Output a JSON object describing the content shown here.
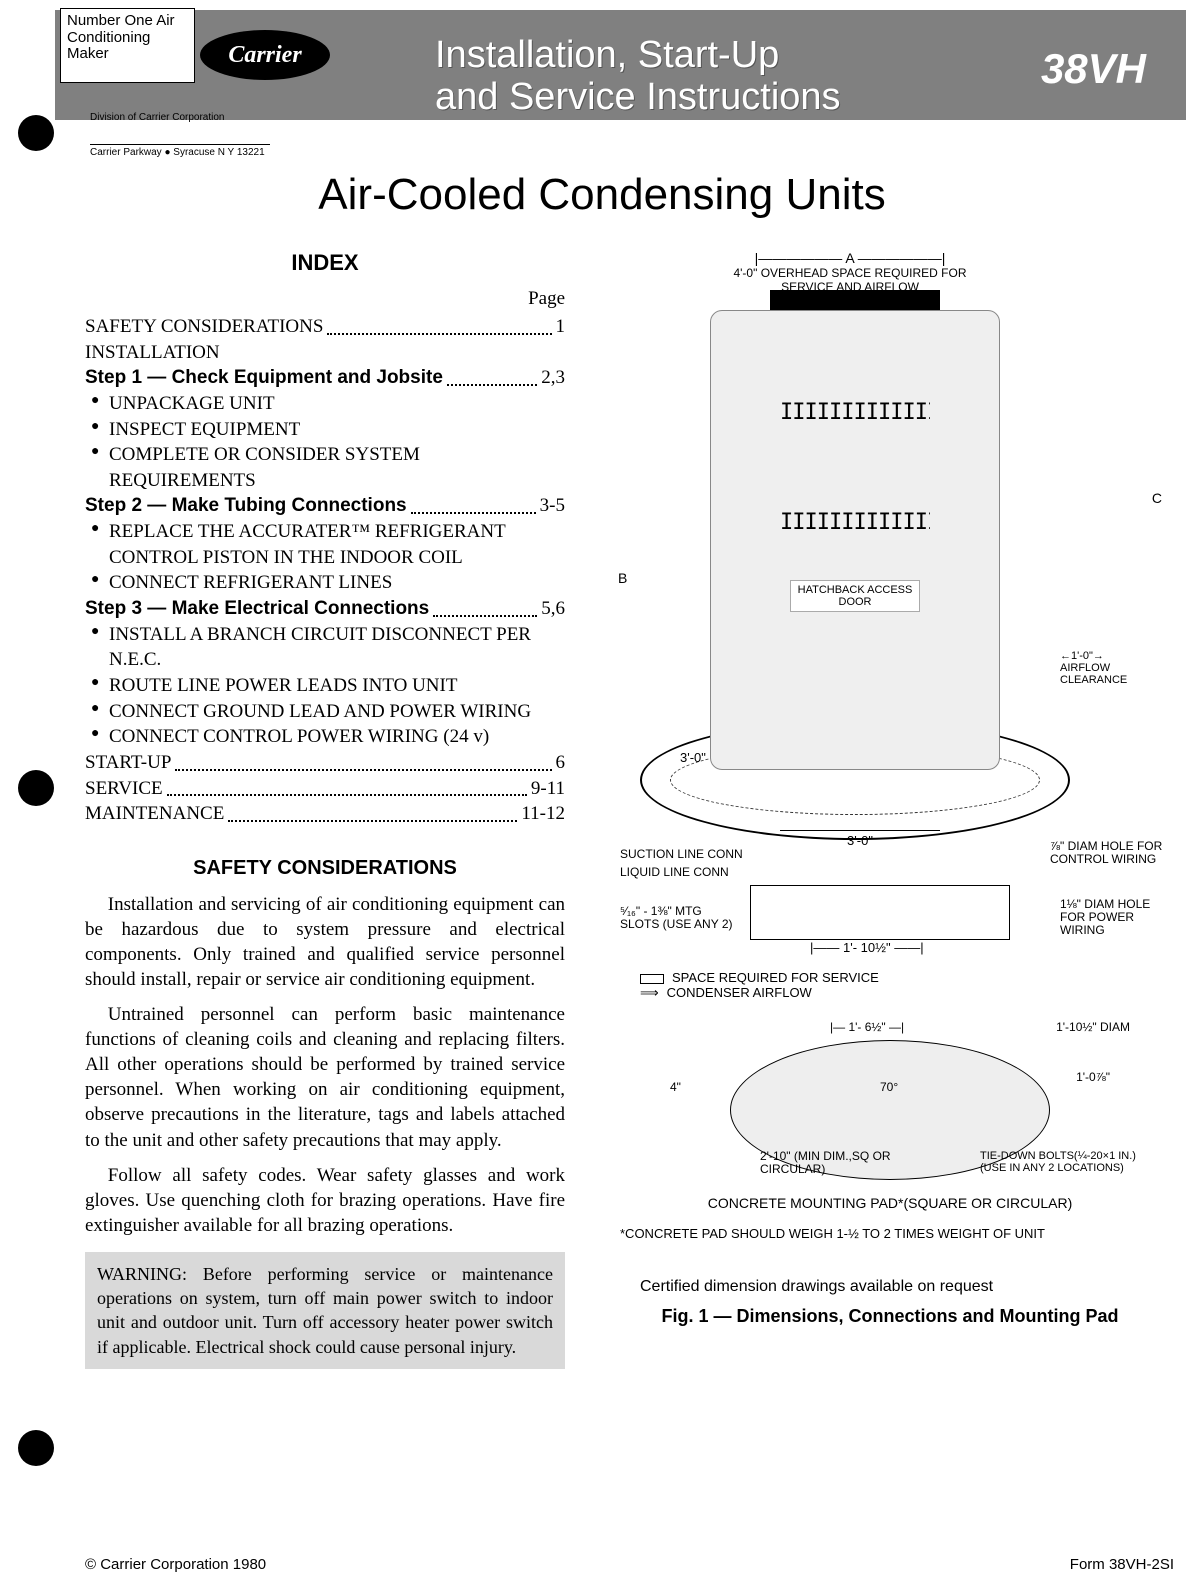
{
  "header": {
    "tagline": "Number One Air Conditioning Maker",
    "brand": "Carrier",
    "division": "Division of Carrier Corporation",
    "address": "Carrier Parkway ● Syracuse N Y 13221",
    "banner_title_line1": "Installation, Start-Up",
    "banner_title_line2": "and Service Instructions",
    "model": "38VH"
  },
  "main_title": "Air-Cooled Condensing Units",
  "index": {
    "title": "INDEX",
    "page_label": "Page",
    "rows": [
      {
        "label": "SAFETY CONSIDERATIONS",
        "page": "1"
      },
      {
        "label": "INSTALLATION",
        "page": ""
      },
      {
        "label_bold": "Step 1 — Check Equipment and Jobsite",
        "page": "2,3"
      }
    ],
    "step1_bullets": [
      "UNPACKAGE UNIT",
      "INSPECT EQUIPMENT",
      "COMPLETE OR CONSIDER SYSTEM REQUIREMENTS"
    ],
    "step2": {
      "label_bold": "Step 2 — Make Tubing Connections",
      "page": "3-5"
    },
    "step2_bullets": [
      "REPLACE THE ACCURATER™ REFRIGERANT CONTROL PISTON IN THE INDOOR COIL",
      "CONNECT REFRIGERANT LINES"
    ],
    "step3": {
      "label_bold": "Step 3 — Make Electrical Connections",
      "page": "5,6"
    },
    "step3_bullets": [
      "INSTALL A BRANCH CIRCUIT DISCONNECT PER N.E.C.",
      "ROUTE LINE POWER LEADS INTO UNIT",
      "CONNECT GROUND LEAD AND POWER WIRING",
      "CONNECT CONTROL POWER WIRING (24 v)"
    ],
    "tail": [
      {
        "label": "START-UP",
        "page": "6"
      },
      {
        "label": "SERVICE",
        "page": "9-11"
      },
      {
        "label": "MAINTENANCE",
        "page": "11-12"
      }
    ]
  },
  "safety": {
    "title": "SAFETY CONSIDERATIONS",
    "p1": "Installation and servicing of air conditioning equipment can be hazardous due to system pressure and electrical components. Only trained and qualified service personnel should install, repair or service air conditioning equipment.",
    "p2": "Untrained personnel can perform basic maintenance functions of cleaning coils and cleaning and replacing filters. All other operations should be performed by trained service personnel. When working on air conditioning equipment, observe precautions in the literature, tags and labels attached to the unit and other safety precautions that may apply.",
    "p3": "Follow all safety codes. Wear safety glasses and work gloves. Use quenching cloth for brazing operations. Have fire extinguisher available for all brazing operations.",
    "warning": "WARNING: Before performing service or maintenance operations on system, turn off main power switch to indoor unit and outdoor unit. Turn off accessory heater power switch if applicable. Electrical shock could cause personal injury."
  },
  "diagram": {
    "dim_a": "A",
    "overhead": "4'-0\" OVERHEAD SPACE REQUIRED FOR SERVICE AND AIRFLOW",
    "grille": "IIIIIIIIIIIIIIII IIIIIIIIIIIIIIII",
    "hatch": "HATCHBACK ACCESS DOOR",
    "dim_b": "B",
    "dim_c": "C",
    "dim_1_0": "1'-0\"",
    "airflow": "AIRFLOW CLEARANCE",
    "dim_3_0": "3'-0\"",
    "suction": "SUCTION LINE CONN",
    "liquid": "LIQUID LINE CONN",
    "diam_hole": "⅞\" DIAM HOLE FOR CONTROL WIRING",
    "mtg": "⁵⁄₁₆\" - 1⅜\" MTG SLOTS (USE ANY 2)",
    "pwr_hole": "1⅛\" DIAM HOLE FOR POWER WIRING",
    "dim_110": "1'- 10½\"",
    "legend_space": "SPACE REQUIRED FOR SERVICE",
    "legend_airflow": "CONDENSER AIRFLOW"
  },
  "pad": {
    "d1": "1'- 6½\"",
    "d2": "1'-10½\" DIAM",
    "d3": "1'-0⅞\"",
    "d4": "4\"",
    "d5": "2'-10\" (MIN DIM.,SQ OR CIRCULAR)",
    "d6": "TIE-DOWN BOLTS(¼-20×1 IN.) (USE IN ANY 2 LOCATIONS)",
    "d7": "70°",
    "label": "CONCRETE MOUNTING PAD*(SQUARE OR CIRCULAR)",
    "note": "*CONCRETE PAD SHOULD WEIGH 1-½ TO 2 TIMES WEIGHT OF UNIT"
  },
  "cert": "Certified dimension drawings available on request",
  "fig_caption": "Fig. 1 — Dimensions, Connections and Mounting Pad",
  "footer": {
    "left": "© Carrier Corporation 1980",
    "right": "Form 38VH-2SI"
  },
  "colors": {
    "banner_bg": "#808080",
    "warning_bg": "#d9d9d9",
    "unit_fill": "#efefef"
  }
}
